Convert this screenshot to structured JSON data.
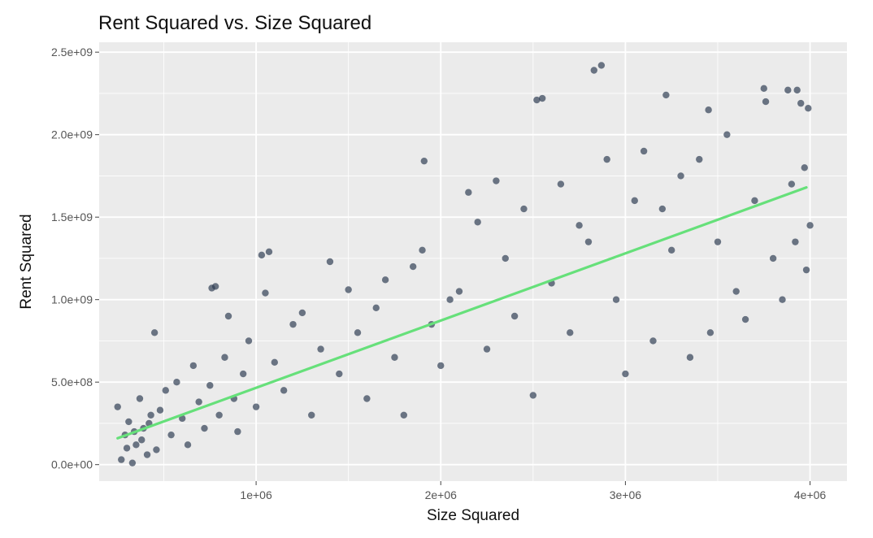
{
  "chart_data": {
    "type": "scatter",
    "title": "Rent Squared vs. Size Squared",
    "xlabel": "Size Squared",
    "ylabel": "Rent Squared",
    "xlim": [
      150000,
      4200000
    ],
    "ylim": [
      -100000000,
      2560000000
    ],
    "x_ticks": [
      {
        "value": 1000000,
        "label": "1e+06"
      },
      {
        "value": 2000000,
        "label": "2e+06"
      },
      {
        "value": 3000000,
        "label": "3e+06"
      },
      {
        "value": 4000000,
        "label": "4e+06"
      }
    ],
    "y_ticks": [
      {
        "value": 0,
        "label": "0.0e+00"
      },
      {
        "value": 500000000,
        "label": "5.0e+08"
      },
      {
        "value": 1000000000,
        "label": "1.0e+09"
      },
      {
        "value": 1500000000,
        "label": "1.5e+09"
      },
      {
        "value": 2000000000,
        "label": "2.0e+09"
      },
      {
        "value": 2500000000,
        "label": "2.5e+09"
      }
    ],
    "grid": true,
    "colors": {
      "panel": "#ebebeb",
      "grid_major": "#ffffff",
      "points": "#2b3a50",
      "fit_line": "#66e07a"
    },
    "series": [
      {
        "type": "scatter",
        "points": [
          [
            250000,
            350000000
          ],
          [
            270000,
            30000000
          ],
          [
            290000,
            180000000
          ],
          [
            310000,
            260000000
          ],
          [
            330000,
            10000000
          ],
          [
            350000,
            120000000
          ],
          [
            370000,
            400000000
          ],
          [
            390000,
            220000000
          ],
          [
            410000,
            60000000
          ],
          [
            430000,
            300000000
          ],
          [
            300000,
            100000000
          ],
          [
            340000,
            200000000
          ],
          [
            380000,
            150000000
          ],
          [
            420000,
            250000000
          ],
          [
            460000,
            90000000
          ],
          [
            450000,
            800000000
          ],
          [
            480000,
            330000000
          ],
          [
            510000,
            450000000
          ],
          [
            540000,
            180000000
          ],
          [
            570000,
            500000000
          ],
          [
            600000,
            280000000
          ],
          [
            630000,
            120000000
          ],
          [
            660000,
            600000000
          ],
          [
            690000,
            380000000
          ],
          [
            720000,
            220000000
          ],
          [
            750000,
            480000000
          ],
          [
            780000,
            1080000000
          ],
          [
            760000,
            1070000000
          ],
          [
            800000,
            300000000
          ],
          [
            830000,
            650000000
          ],
          [
            850000,
            900000000
          ],
          [
            880000,
            400000000
          ],
          [
            900000,
            200000000
          ],
          [
            930000,
            550000000
          ],
          [
            960000,
            750000000
          ],
          [
            1000000,
            350000000
          ],
          [
            1030000,
            1270000000
          ],
          [
            1070000,
            1290000000
          ],
          [
            1050000,
            1040000000
          ],
          [
            1100000,
            620000000
          ],
          [
            1150000,
            450000000
          ],
          [
            1200000,
            850000000
          ],
          [
            1250000,
            920000000
          ],
          [
            1300000,
            300000000
          ],
          [
            1350000,
            700000000
          ],
          [
            1400000,
            1230000000
          ],
          [
            1450000,
            550000000
          ],
          [
            1500000,
            1060000000
          ],
          [
            1550000,
            800000000
          ],
          [
            1600000,
            400000000
          ],
          [
            1650000,
            950000000
          ],
          [
            1700000,
            1120000000
          ],
          [
            1750000,
            650000000
          ],
          [
            1800000,
            300000000
          ],
          [
            1850000,
            1200000000
          ],
          [
            1900000,
            1300000000
          ],
          [
            1910000,
            1840000000
          ],
          [
            1950000,
            850000000
          ],
          [
            2000000,
            600000000
          ],
          [
            2050000,
            1000000000
          ],
          [
            2100000,
            1050000000
          ],
          [
            2150000,
            1650000000
          ],
          [
            2200000,
            1470000000
          ],
          [
            2250000,
            700000000
          ],
          [
            2300000,
            1720000000
          ],
          [
            2350000,
            1250000000
          ],
          [
            2400000,
            900000000
          ],
          [
            2450000,
            1550000000
          ],
          [
            2500000,
            420000000
          ],
          [
            2520000,
            2210000000
          ],
          [
            2550000,
            2220000000
          ],
          [
            2600000,
            1100000000
          ],
          [
            2650000,
            1700000000
          ],
          [
            2700000,
            800000000
          ],
          [
            2750000,
            1450000000
          ],
          [
            2800000,
            1350000000
          ],
          [
            2830000,
            2390000000
          ],
          [
            2870000,
            2420000000
          ],
          [
            2900000,
            1850000000
          ],
          [
            2950000,
            1000000000
          ],
          [
            3000000,
            550000000
          ],
          [
            3050000,
            1600000000
          ],
          [
            3100000,
            1900000000
          ],
          [
            3150000,
            750000000
          ],
          [
            3200000,
            1550000000
          ],
          [
            3220000,
            2240000000
          ],
          [
            3250000,
            1300000000
          ],
          [
            3300000,
            1750000000
          ],
          [
            3350000,
            650000000
          ],
          [
            3400000,
            1850000000
          ],
          [
            3450000,
            2150000000
          ],
          [
            3460000,
            800000000
          ],
          [
            3500000,
            1350000000
          ],
          [
            3550000,
            2000000000
          ],
          [
            3600000,
            1050000000
          ],
          [
            3650000,
            880000000
          ],
          [
            3700000,
            1600000000
          ],
          [
            3750000,
            2280000000
          ],
          [
            3760000,
            2200000000
          ],
          [
            3800000,
            1250000000
          ],
          [
            3850000,
            1000000000
          ],
          [
            3880000,
            2270000000
          ],
          [
            3900000,
            1700000000
          ],
          [
            3930000,
            2270000000
          ],
          [
            3950000,
            2190000000
          ],
          [
            3970000,
            1800000000
          ],
          [
            3990000,
            2160000000
          ],
          [
            4000000,
            1450000000
          ],
          [
            3980000,
            1180000000
          ],
          [
            3920000,
            1350000000
          ]
        ]
      },
      {
        "type": "line",
        "points": [
          [
            250000,
            160000000
          ],
          [
            3980000,
            1680000000
          ]
        ]
      }
    ]
  }
}
